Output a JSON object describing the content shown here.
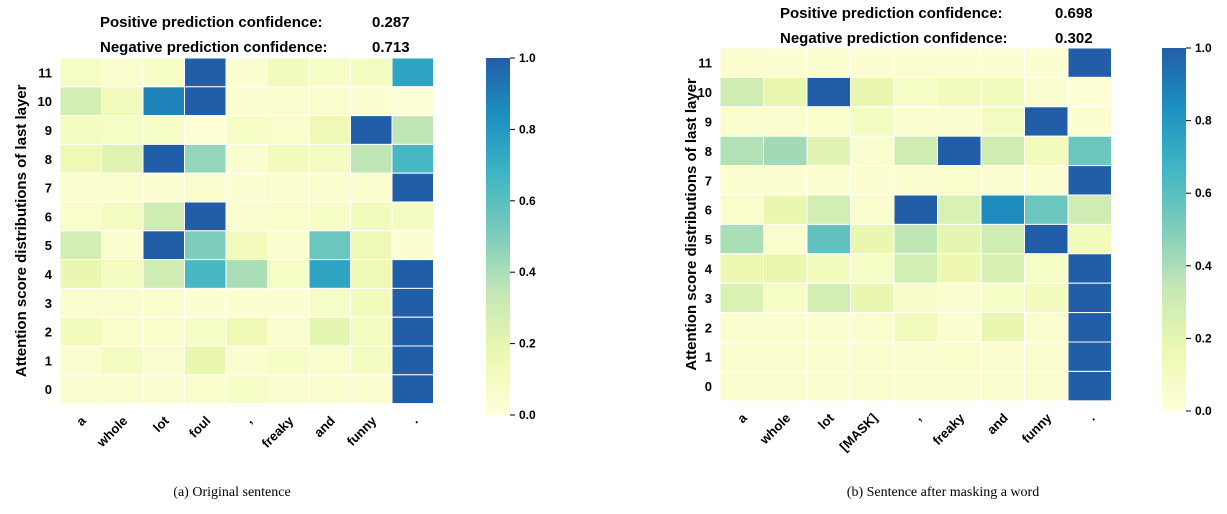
{
  "figure": {
    "colors": {
      "colormap_stops": [
        "#ffffd9",
        "#edf8b1",
        "#c7e9b4",
        "#7fcdbb",
        "#41b6c4",
        "#1d91c0",
        "#225ea8"
      ],
      "cell_border": "#ffffff",
      "text": "#000000"
    }
  },
  "chart_data": [
    {
      "type": "heatmap",
      "title_lines": [
        {
          "label": "Positive prediction confidence:",
          "value": "0.287"
        },
        {
          "label": "Negative prediction confidence:",
          "value": "0.713"
        }
      ],
      "ylabel": "Attention score distributions of last layer",
      "xlabel": "",
      "caption": "(a)  Original sentence",
      "x_categories": [
        "a",
        "whole",
        "lot",
        "foul",
        ",",
        "freaky",
        "and",
        "funny",
        "."
      ],
      "y_categories": [
        "11",
        "10",
        "9",
        "8",
        "7",
        "6",
        "5",
        "4",
        "3",
        "2",
        "1",
        "0"
      ],
      "colorbar": {
        "range": [
          0.0,
          1.0
        ],
        "ticks": [
          "0.0",
          "0.2",
          "0.4",
          "0.6",
          "0.8",
          "1.0"
        ]
      },
      "values": [
        [
          0.08,
          0.04,
          0.08,
          1.0,
          0.03,
          0.12,
          0.08,
          0.1,
          0.75
        ],
        [
          0.28,
          0.12,
          0.88,
          1.0,
          0.04,
          0.04,
          0.04,
          0.03,
          0.02
        ],
        [
          0.1,
          0.08,
          0.08,
          0.02,
          0.08,
          0.06,
          0.15,
          1.0,
          0.35
        ],
        [
          0.15,
          0.22,
          1.0,
          0.45,
          0.05,
          0.12,
          0.1,
          0.35,
          0.65
        ],
        [
          0.04,
          0.04,
          0.03,
          0.05,
          0.03,
          0.04,
          0.04,
          0.05,
          1.0
        ],
        [
          0.06,
          0.1,
          0.3,
          1.0,
          0.05,
          0.06,
          0.08,
          0.12,
          0.1
        ],
        [
          0.28,
          0.05,
          1.0,
          0.5,
          0.12,
          0.05,
          0.55,
          0.15,
          0.03
        ],
        [
          0.18,
          0.1,
          0.3,
          0.65,
          0.4,
          0.08,
          0.75,
          0.15,
          1.0
        ],
        [
          0.06,
          0.04,
          0.06,
          0.03,
          0.03,
          0.03,
          0.08,
          0.12,
          1.0
        ],
        [
          0.12,
          0.06,
          0.06,
          0.08,
          0.15,
          0.05,
          0.2,
          0.1,
          1.0
        ],
        [
          0.05,
          0.1,
          0.05,
          0.18,
          0.05,
          0.08,
          0.06,
          0.1,
          1.0
        ],
        [
          0.05,
          0.05,
          0.04,
          0.06,
          0.08,
          0.05,
          0.05,
          0.04,
          1.0
        ]
      ]
    },
    {
      "type": "heatmap",
      "title_lines": [
        {
          "label": "Positive prediction confidence:",
          "value": "0.698"
        },
        {
          "label": "Negative prediction confidence:",
          "value": "0.302"
        }
      ],
      "ylabel": "Attention score distributions of last layer",
      "xlabel": "",
      "caption": "(b)  Sentence after masking a word",
      "x_categories": [
        "a",
        "whole",
        "lot",
        "[MASK]",
        ",",
        "freaky",
        "and",
        "funny",
        "."
      ],
      "y_categories": [
        "11",
        "10",
        "9",
        "8",
        "7",
        "6",
        "5",
        "4",
        "3",
        "2",
        "1",
        "0"
      ],
      "colorbar": {
        "range": [
          0.0,
          1.0
        ],
        "ticks": [
          "0.0",
          "0.2",
          "0.4",
          "0.6",
          "0.8",
          "1.0"
        ]
      },
      "values": [
        [
          0.04,
          0.03,
          0.05,
          0.03,
          0.03,
          0.03,
          0.03,
          0.03,
          1.0
        ],
        [
          0.3,
          0.18,
          1.0,
          0.18,
          0.08,
          0.12,
          0.12,
          0.04,
          0.02
        ],
        [
          0.05,
          0.04,
          0.06,
          0.1,
          0.04,
          0.04,
          0.1,
          1.0,
          0.03
        ],
        [
          0.38,
          0.42,
          0.22,
          0.05,
          0.3,
          1.0,
          0.3,
          0.12,
          0.55
        ],
        [
          0.03,
          0.03,
          0.03,
          0.03,
          0.04,
          0.06,
          0.03,
          0.03,
          1.0
        ],
        [
          0.06,
          0.18,
          0.28,
          0.05,
          1.0,
          0.25,
          0.85,
          0.55,
          0.3
        ],
        [
          0.4,
          0.04,
          0.58,
          0.18,
          0.35,
          0.2,
          0.3,
          1.0,
          0.12
        ],
        [
          0.16,
          0.18,
          0.12,
          0.08,
          0.28,
          0.16,
          0.26,
          0.08,
          1.0
        ],
        [
          0.25,
          0.08,
          0.28,
          0.18,
          0.07,
          0.04,
          0.08,
          0.12,
          1.0
        ],
        [
          0.04,
          0.04,
          0.04,
          0.04,
          0.12,
          0.04,
          0.18,
          0.04,
          1.0
        ],
        [
          0.04,
          0.04,
          0.04,
          0.04,
          0.04,
          0.06,
          0.04,
          0.04,
          1.0
        ],
        [
          0.04,
          0.04,
          0.04,
          0.04,
          0.04,
          0.04,
          0.04,
          0.04,
          1.0
        ]
      ]
    }
  ]
}
